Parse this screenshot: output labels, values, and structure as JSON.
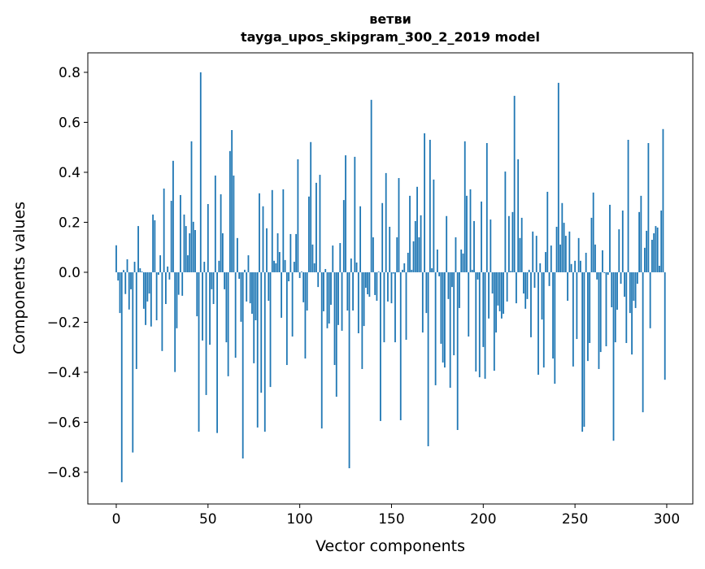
{
  "chart_data": {
    "type": "bar",
    "title": "ветви",
    "subtitle": "tayga_upos_skipgram_300_2_2019 model",
    "xlabel": "Vector components",
    "ylabel": "Components values",
    "xlim": [
      -15.5,
      314.2
    ],
    "ylim": [
      -0.927,
      0.878
    ],
    "xticks": [
      0,
      50,
      100,
      150,
      200,
      250,
      300
    ],
    "xtick_labels": [
      "0",
      "50",
      "100",
      "150",
      "200",
      "250",
      "300"
    ],
    "yticks": [
      -0.8,
      -0.6,
      -0.4,
      -0.2,
      0.0,
      0.2,
      0.4,
      0.6,
      0.8
    ],
    "ytick_labels": [
      "−0.8",
      "−0.6",
      "−0.4",
      "−0.2",
      "0.0",
      "0.2",
      "0.4",
      "0.6",
      "0.8"
    ],
    "grid": false,
    "color": "#1f77b4",
    "values": [
      0.108,
      -0.033,
      -0.163,
      -0.84,
      0.009,
      -0.087,
      0.052,
      -0.149,
      -0.068,
      -0.721,
      0.042,
      -0.387,
      0.185,
      0.016,
      0.003,
      -0.146,
      -0.211,
      -0.117,
      -0.085,
      -0.217,
      0.231,
      0.208,
      -0.192,
      -0.01,
      0.068,
      -0.315,
      0.335,
      -0.127,
      0.023,
      -0.029,
      0.286,
      0.446,
      -0.399,
      -0.224,
      -0.09,
      0.309,
      -0.094,
      0.231,
      0.185,
      0.068,
      0.156,
      0.524,
      0.202,
      0.169,
      -0.176,
      -0.638,
      0.8,
      -0.273,
      0.042,
      -0.491,
      0.273,
      -0.29,
      -0.068,
      -0.127,
      0.387,
      -0.643,
      0.046,
      0.312,
      0.156,
      -0.068,
      -0.28,
      -0.416,
      0.485,
      0.569,
      0.387,
      -0.342,
      0.137,
      -0.026,
      -0.198,
      -0.745,
      0.01,
      -0.117,
      0.068,
      -0.124,
      -0.166,
      -0.364,
      -0.192,
      -0.621,
      0.316,
      -0.482,
      0.264,
      -0.638,
      0.176,
      -0.114,
      -0.459,
      0.329,
      0.046,
      0.036,
      0.156,
      0.081,
      -0.182,
      0.332,
      0.049,
      -0.371,
      -0.036,
      0.153,
      -0.257,
      0.042,
      0.153,
      0.452,
      -0.023,
      0.003,
      -0.12,
      -0.345,
      -0.153,
      0.303,
      0.521,
      0.111,
      0.036,
      0.358,
      -0.059,
      0.39,
      -0.625,
      -0.156,
      0.013,
      -0.224,
      -0.205,
      -0.13,
      0.107,
      -0.371,
      -0.498,
      -0.211,
      0.117,
      -0.234,
      0.289,
      0.468,
      -0.153,
      -0.784,
      0.055,
      -0.153,
      0.462,
      0.039,
      -0.244,
      0.264,
      -0.387,
      -0.215,
      -0.062,
      -0.088,
      -0.098,
      0.69,
      0.14,
      -0.091,
      -0.114,
      0.003,
      -0.595,
      0.277,
      -0.28,
      0.397,
      -0.117,
      0.182,
      -0.124,
      -0.005,
      -0.28,
      0.14,
      0.377,
      -0.592,
      0.01,
      0.036,
      -0.27,
      0.078,
      0.306,
      0.01,
      0.124,
      0.205,
      0.342,
      0.14,
      0.228,
      -0.241,
      0.556,
      -0.163,
      -0.696,
      0.53,
      0.016,
      0.371,
      -0.452,
      0.091,
      -0.016,
      -0.286,
      -0.361,
      -0.381,
      0.225,
      -0.107,
      -0.462,
      -0.059,
      -0.332,
      0.14,
      -0.631,
      -0.143,
      0.091,
      0.075,
      0.524,
      0.306,
      -0.257,
      0.332,
      0.01,
      0.205,
      -0.397,
      -0.029,
      -0.42,
      0.283,
      -0.299,
      -0.426,
      0.517,
      -0.185,
      0.211,
      -0.085,
      -0.394,
      -0.241,
      -0.133,
      -0.156,
      -0.185,
      -0.166,
      0.403,
      -0.117,
      0.225,
      0.005,
      0.241,
      0.706,
      -0.124,
      0.452,
      0.137,
      0.218,
      -0.085,
      -0.146,
      -0.107,
      0.01,
      -0.26,
      0.163,
      -0.062,
      0.146,
      -0.41,
      0.036,
      -0.189,
      -0.381,
      0.081,
      0.322,
      -0.055,
      0.107,
      -0.345,
      -0.446,
      0.182,
      0.758,
      0.111,
      0.277,
      0.198,
      0.146,
      -0.114,
      0.163,
      0.033,
      -0.377,
      0.046,
      -0.267,
      0.137,
      0.046,
      -0.638,
      -0.618,
      0.078,
      -0.355,
      -0.283,
      0.218,
      0.319,
      0.111,
      -0.029,
      -0.387,
      -0.319,
      0.088,
      -0.003,
      -0.296,
      -0.01,
      0.27,
      -0.14,
      -0.674,
      -0.28,
      -0.15,
      0.172,
      -0.046,
      0.247,
      -0.098,
      -0.283,
      0.53,
      -0.163,
      -0.329,
      -0.114,
      -0.143,
      -0.046,
      0.241,
      0.306,
      -0.56,
      0.098,
      0.166,
      0.517,
      -0.224,
      0.13,
      0.156,
      0.185,
      0.179,
      0.026,
      0.247,
      0.573,
      -0.43
    ]
  }
}
